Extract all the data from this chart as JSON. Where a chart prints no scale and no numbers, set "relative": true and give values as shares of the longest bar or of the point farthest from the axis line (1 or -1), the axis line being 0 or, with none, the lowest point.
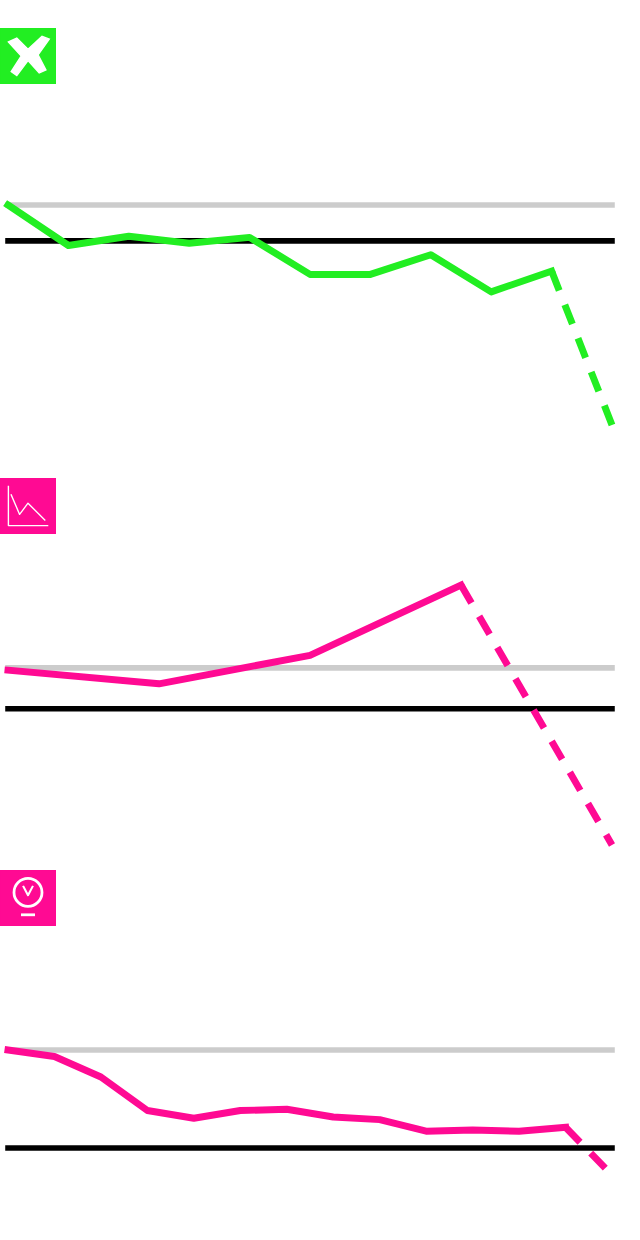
{
  "chart_data": [
    {
      "type": "line",
      "relative": true,
      "categories": [
        null,
        null,
        null,
        null,
        null,
        null,
        null,
        null,
        null,
        null,
        null
      ],
      "series": [
        {
          "color": "#22ee22",
          "line_style": "solid",
          "values": [
            0.195,
            -0.025,
            0.025,
            -0.013,
            0.019,
            -0.182,
            -0.182,
            -0.075,
            -0.277,
            -0.164,
            null
          ]
        },
        {
          "color": "#22ee22",
          "line_style": "dashed",
          "values": [
            null,
            null,
            null,
            null,
            null,
            null,
            null,
            null,
            null,
            -0.164,
            -1
          ]
        }
      ],
      "ref_lines": [
        {
          "axis": "y",
          "value": 0.195,
          "color": "#cccccc"
        }
      ]
    },
    {
      "type": "line",
      "relative": true,
      "categories": [
        null,
        null,
        null,
        null,
        null
      ],
      "series": [
        {
          "color": "#ff0a93",
          "line_style": "solid",
          "values": [
            0.283,
            0.183,
            0.392,
            0.908,
            null
          ]
        },
        {
          "color": "#ff0a93",
          "line_style": "dashed",
          "values": [
            null,
            null,
            null,
            0.908,
            -1
          ]
        }
      ],
      "ref_lines": [
        {
          "axis": "y",
          "value": 0.3,
          "color": "#cccccc"
        }
      ]
    },
    {
      "type": "line",
      "relative": true,
      "categories": [
        null,
        null,
        null,
        null,
        null,
        null,
        null,
        null,
        null,
        null,
        null,
        null,
        null,
        null
      ],
      "series": [
        {
          "color": "#ff0a93",
          "line_style": "solid",
          "values": [
            1.0,
            0.934,
            0.724,
            0.382,
            0.303,
            0.382,
            0.395,
            0.316,
            0.289,
            0.171,
            0.184,
            0.171,
            0.211,
            null
          ]
        },
        {
          "color": "#ff0a93",
          "line_style": "dashed",
          "values": [
            null,
            null,
            null,
            null,
            null,
            null,
            null,
            null,
            null,
            null,
            null,
            null,
            0.211,
            -0.276
          ]
        }
      ],
      "ref_lines": [
        {
          "axis": "y",
          "value": 1.0,
          "color": "#cccccc"
        }
      ]
    }
  ]
}
